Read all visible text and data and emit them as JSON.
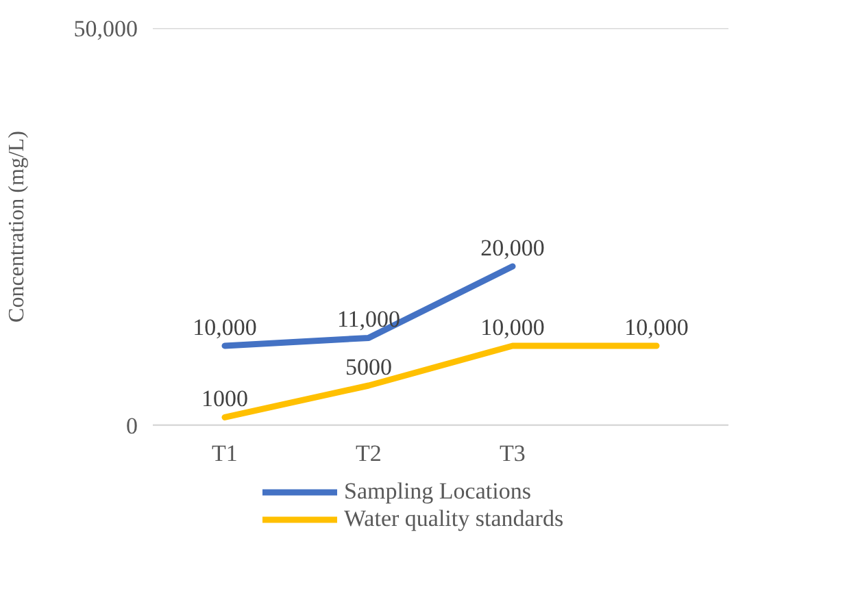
{
  "chart_data": {
    "type": "line",
    "ylabel": "Concentration (mg/L)",
    "categories": [
      "T1",
      "T2",
      "T3",
      null
    ],
    "series": [
      {
        "name": "Sampling Locations",
        "color": "#4472c4",
        "values": [
          10000,
          11000,
          20000,
          null
        ],
        "value_labels": [
          "10,000",
          "11,000",
          "20,000",
          null
        ]
      },
      {
        "name": "Water quality standards",
        "color": "#ffc000",
        "values": [
          1000,
          5000,
          10000,
          10000
        ],
        "value_labels": [
          "1000",
          "5000",
          "10,000",
          "10,000"
        ]
      }
    ],
    "ylim": [
      0,
      50000
    ],
    "yticks": [
      0,
      {
        "value": 50000,
        "label": "50,000"
      }
    ],
    "grid": "y",
    "legend": "bottom",
    "marker": "none",
    "line_style": "solid"
  }
}
